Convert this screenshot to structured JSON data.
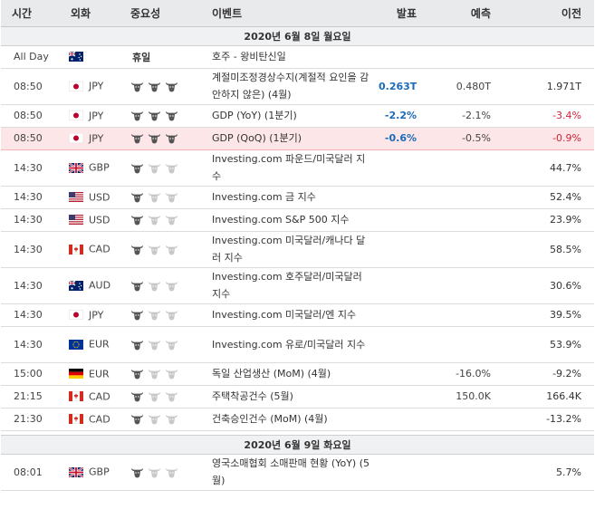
{
  "header": {
    "time": "시간",
    "currency": "외화",
    "importance": "중요성",
    "event": "이벤트",
    "actual": "발표",
    "forecast": "예측",
    "previous": "이전"
  },
  "days": [
    {
      "date": "2020년 6월 8일 월요일",
      "rows": [
        {
          "time": "All Day",
          "flag": "australia",
          "currency": "",
          "importance": "휴일",
          "event": "호주 - 왕비탄신일",
          "actual": "",
          "actual_color": "",
          "forecast": "",
          "previous": "",
          "previous_color": "",
          "tall": false,
          "highlight": false
        },
        {
          "time": "08:50",
          "flag": "japan",
          "currency": "JPY",
          "importance": 3,
          "event": "계절미조정경상수지(계절적 요인을 감안하지 않은) (4월)",
          "actual": "0.263T",
          "actual_color": "#1b6bb8",
          "forecast": "0.480T",
          "previous": "1.971T",
          "previous_color": "",
          "tall": true,
          "highlight": false
        },
        {
          "time": "08:50",
          "flag": "japan",
          "currency": "JPY",
          "importance": 3,
          "event": "GDP (YoY) (1분기)",
          "actual": "-2.2%",
          "actual_color": "#1b6bb8",
          "forecast": "-2.1%",
          "previous": "-3.4%",
          "previous_color": "#d0243a",
          "tall": false,
          "highlight": false
        },
        {
          "time": "08:50",
          "flag": "japan",
          "currency": "JPY",
          "importance": 3,
          "event": "GDP (QoQ) (1분기)",
          "actual": "-0.6%",
          "actual_color": "#1b6bb8",
          "forecast": "-0.5%",
          "previous": "-0.9%",
          "previous_color": "#d0243a",
          "tall": false,
          "highlight": true
        },
        {
          "time": "14:30",
          "flag": "uk",
          "currency": "GBP",
          "importance": 1,
          "event": "Investing.com 파운드/미국달러 지수",
          "actual": "",
          "actual_color": "",
          "forecast": "",
          "previous": "44.7%",
          "previous_color": "",
          "tall": true,
          "highlight": false
        },
        {
          "time": "14:30",
          "flag": "usa",
          "currency": "USD",
          "importance": 1,
          "event": "Investing.com 금 지수",
          "actual": "",
          "actual_color": "",
          "forecast": "",
          "previous": "52.4%",
          "previous_color": "",
          "tall": false,
          "highlight": false
        },
        {
          "time": "14:30",
          "flag": "usa",
          "currency": "USD",
          "importance": 1,
          "event": "Investing.com S&P 500 지수",
          "actual": "",
          "actual_color": "",
          "forecast": "",
          "previous": "23.9%",
          "previous_color": "",
          "tall": false,
          "highlight": false
        },
        {
          "time": "14:30",
          "flag": "canada",
          "currency": "CAD",
          "importance": 1,
          "event": "Investing.com 미국달러/캐나다 달러 지수",
          "actual": "",
          "actual_color": "",
          "forecast": "",
          "previous": "58.5%",
          "previous_color": "",
          "tall": true,
          "highlight": false
        },
        {
          "time": "14:30",
          "flag": "australia",
          "currency": "AUD",
          "importance": 1,
          "event": "Investing.com 호주달러/미국달러 지수",
          "actual": "",
          "actual_color": "",
          "forecast": "",
          "previous": "30.6%",
          "previous_color": "",
          "tall": true,
          "highlight": false
        },
        {
          "time": "14:30",
          "flag": "japan",
          "currency": "JPY",
          "importance": 1,
          "event": "Investing.com 미국달러/엔 지수",
          "actual": "",
          "actual_color": "",
          "forecast": "",
          "previous": "39.5%",
          "previous_color": "",
          "tall": false,
          "highlight": false
        },
        {
          "time": "14:30",
          "flag": "eu",
          "currency": "EUR",
          "importance": 1,
          "event": "Investing.com 유로/미국달러 지수",
          "actual": "",
          "actual_color": "",
          "forecast": "",
          "previous": "53.9%",
          "previous_color": "",
          "tall": true,
          "highlight": false
        },
        {
          "time": "15:00",
          "flag": "germany",
          "currency": "EUR",
          "importance": 1,
          "event": "독일 산업생산 (MoM) (4월)",
          "actual": "",
          "actual_color": "",
          "forecast": "-16.0%",
          "previous": "-9.2%",
          "previous_color": "",
          "tall": false,
          "highlight": false
        },
        {
          "time": "21:15",
          "flag": "canada",
          "currency": "CAD",
          "importance": 1,
          "event": "주택착공건수 (5월)",
          "actual": "",
          "actual_color": "",
          "forecast": "150.0K",
          "previous": "166.4K",
          "previous_color": "",
          "tall": false,
          "highlight": false
        },
        {
          "time": "21:30",
          "flag": "canada",
          "currency": "CAD",
          "importance": 1,
          "event": "건축승인건수 (MoM) (4월)",
          "actual": "",
          "actual_color": "",
          "forecast": "",
          "previous": "-13.2%",
          "previous_color": "",
          "tall": false,
          "highlight": false
        }
      ]
    },
    {
      "date": "2020년 6월 9일 화요일",
      "rows": [
        {
          "time": "08:01",
          "flag": "uk",
          "currency": "GBP",
          "importance": 1,
          "event": "영국소매협회 소매판매 현황 (YoY) (5월)",
          "actual": "",
          "actual_color": "",
          "forecast": "",
          "previous": "5.7%",
          "previous_color": "",
          "tall": true,
          "highlight": false
        }
      ]
    }
  ],
  "colors": {
    "actual_positive": "#1b6bb8",
    "negative": "#d0243a",
    "highlight_row": "#fde6e7",
    "bull_active": "#555555",
    "bull_inactive": "#c8c8c8"
  }
}
